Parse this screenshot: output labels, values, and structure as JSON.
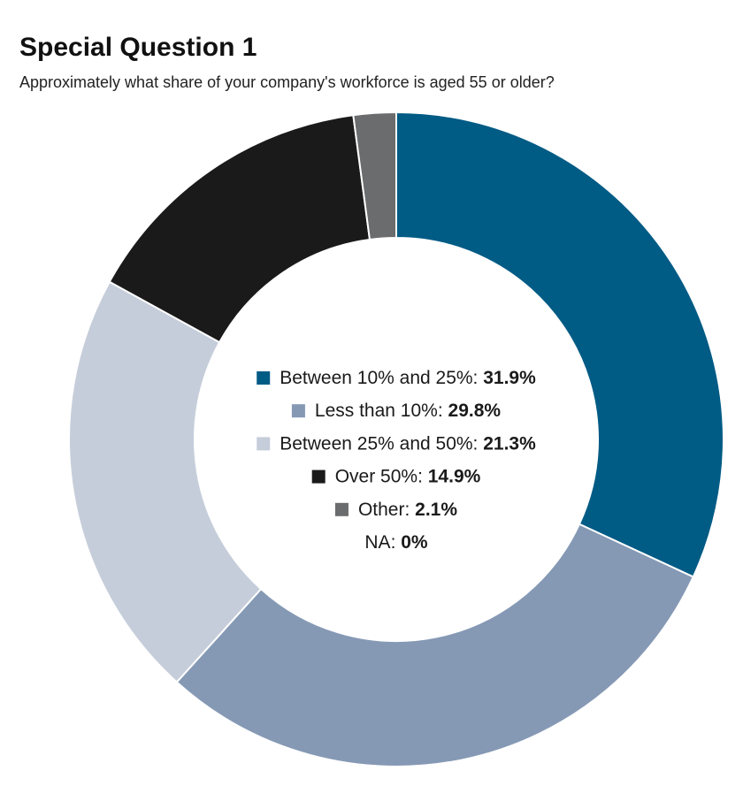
{
  "chart_data": {
    "type": "donut",
    "title": "Special Question 1",
    "subtitle": "Approximately what share of your company's workforce is aged 55 or older?",
    "categories": [
      "Between 10% and 25%",
      "Less than 10%",
      "Between 25% and 50%",
      "Over 50%",
      "Other",
      "NA"
    ],
    "values": [
      31.9,
      29.8,
      21.3,
      14.9,
      2.1,
      0
    ],
    "value_labels": [
      "31.9%",
      "29.8%",
      "21.3%",
      "14.9%",
      "2.1%",
      "0%"
    ],
    "colors": [
      "#005b85",
      "#8599b5",
      "#c6cdda",
      "#1b1a1a",
      "#6b6c6e",
      null
    ],
    "label_separator": ":"
  }
}
